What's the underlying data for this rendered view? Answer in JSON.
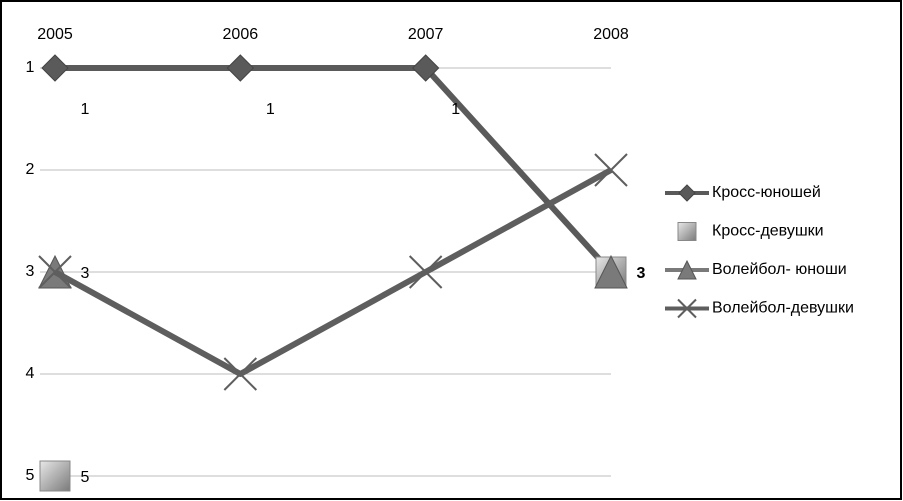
{
  "chart_data": {
    "type": "line",
    "categories": [
      "2005",
      "2006",
      "2007",
      "2008"
    ],
    "ylim": [
      1,
      5
    ],
    "y_reversed": true,
    "yticks": [
      1,
      2,
      3,
      4,
      5
    ],
    "grid": true,
    "legend": "right",
    "series": [
      {
        "name": "Кросс-юношей",
        "color": "#5a5a5a",
        "marker": "diamond",
        "line": true,
        "values": [
          1,
          1,
          1,
          3
        ],
        "labels": [
          true,
          true,
          true,
          false
        ]
      },
      {
        "name": "Кросс-девушки",
        "color": "#9a9a9a",
        "marker": "square",
        "line": false,
        "values": [
          5,
          null,
          null,
          3
        ],
        "labels": [
          true,
          false,
          false,
          true
        ]
      },
      {
        "name": "Волейбол- юноши",
        "color": "#7a7a7a",
        "marker": "triangle",
        "line": true,
        "values": [
          3,
          null,
          null,
          3
        ],
        "labels": [
          true,
          false,
          false,
          false
        ]
      },
      {
        "name": "Волейбол-девушки",
        "color": "#5e5e5e",
        "marker": "x",
        "line": true,
        "values": [
          3,
          4,
          3,
          2
        ],
        "labels": [
          false,
          false,
          false,
          false
        ]
      }
    ]
  }
}
